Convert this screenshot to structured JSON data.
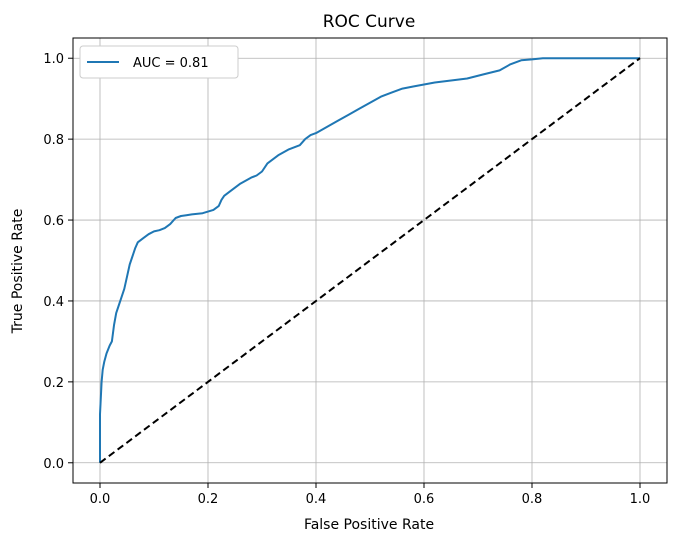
{
  "chart_data": {
    "type": "line",
    "title": "ROC Curve",
    "xlabel": "False Positive Rate",
    "ylabel": "True Positive Rate",
    "xlim": [
      -0.05,
      1.05
    ],
    "ylim": [
      -0.05,
      1.05
    ],
    "x_ticks": [
      0.0,
      0.2,
      0.4,
      0.6,
      0.8,
      1.0
    ],
    "y_ticks": [
      0.0,
      0.2,
      0.4,
      0.6,
      0.8,
      1.0
    ],
    "x_tick_labels": [
      "0.0",
      "0.2",
      "0.4",
      "0.6",
      "0.8",
      "1.0"
    ],
    "y_tick_labels": [
      "0.0",
      "0.2",
      "0.4",
      "0.6",
      "0.8",
      "1.0"
    ],
    "grid": true,
    "legend_position": "top-left",
    "series": [
      {
        "name": "AUC = 0.81",
        "color": "#1f77b4",
        "style": "solid",
        "x": [
          0.0,
          0.0,
          0.003,
          0.005,
          0.008,
          0.012,
          0.018,
          0.022,
          0.026,
          0.03,
          0.035,
          0.04,
          0.045,
          0.05,
          0.055,
          0.06,
          0.065,
          0.07,
          0.08,
          0.09,
          0.1,
          0.11,
          0.12,
          0.13,
          0.14,
          0.15,
          0.16,
          0.17,
          0.19,
          0.21,
          0.22,
          0.225,
          0.23,
          0.24,
          0.26,
          0.28,
          0.29,
          0.3,
          0.31,
          0.33,
          0.35,
          0.37,
          0.38,
          0.39,
          0.4,
          0.42,
          0.44,
          0.46,
          0.48,
          0.5,
          0.52,
          0.54,
          0.56,
          0.58,
          0.6,
          0.62,
          0.65,
          0.68,
          0.71,
          0.74,
          0.76,
          0.78,
          0.8,
          0.82,
          0.86,
          0.9,
          1.0
        ],
        "y": [
          0.0,
          0.12,
          0.2,
          0.23,
          0.25,
          0.27,
          0.29,
          0.3,
          0.34,
          0.37,
          0.39,
          0.41,
          0.43,
          0.46,
          0.49,
          0.51,
          0.53,
          0.545,
          0.555,
          0.565,
          0.572,
          0.575,
          0.58,
          0.59,
          0.605,
          0.61,
          0.612,
          0.614,
          0.617,
          0.625,
          0.635,
          0.65,
          0.66,
          0.67,
          0.69,
          0.705,
          0.71,
          0.72,
          0.74,
          0.76,
          0.775,
          0.785,
          0.8,
          0.81,
          0.815,
          0.83,
          0.845,
          0.86,
          0.875,
          0.89,
          0.905,
          0.915,
          0.925,
          0.93,
          0.935,
          0.94,
          0.945,
          0.95,
          0.96,
          0.97,
          0.985,
          0.995,
          0.997,
          1.0,
          1.0,
          1.0,
          1.0
        ]
      },
      {
        "name": "",
        "color": "#000000",
        "style": "dashed",
        "x": [
          0.0,
          1.0
        ],
        "y": [
          0.0,
          1.0
        ]
      }
    ]
  }
}
